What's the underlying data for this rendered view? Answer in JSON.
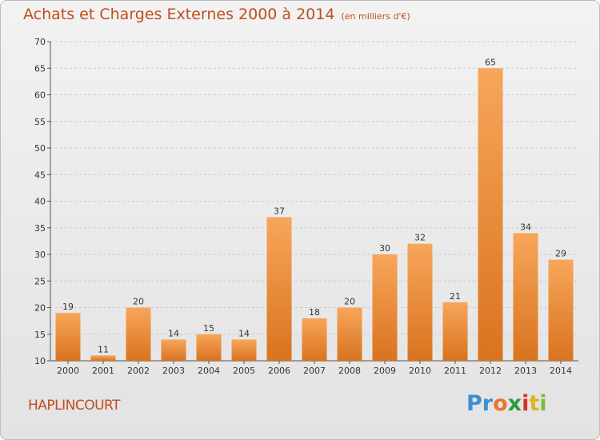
{
  "chart_data": {
    "type": "bar",
    "title": "Achats et Charges Externes 2000 à 2014",
    "unit": "(en milliers d'€)",
    "categories": [
      "2000",
      "2001",
      "2002",
      "2003",
      "2004",
      "2005",
      "2006",
      "2007",
      "2008",
      "2009",
      "2010",
      "2011",
      "2012",
      "2013",
      "2014"
    ],
    "values": [
      19,
      11,
      20,
      14,
      15,
      14,
      37,
      18,
      20,
      30,
      32,
      21,
      65,
      34,
      29
    ],
    "xlabel": "",
    "ylabel": "",
    "ylim": [
      10,
      70
    ],
    "yticks": [
      10,
      15,
      20,
      25,
      30,
      35,
      40,
      45,
      50,
      55,
      60,
      65,
      70
    ],
    "grid": "horizontal-dashed",
    "bar_color_top": "#f7a65a",
    "bar_color_bottom": "#d9731f"
  },
  "footer": {
    "commune": "HAPLINCOURT",
    "logo": [
      "Pr",
      "o",
      "x",
      "i",
      "t",
      "i"
    ]
  }
}
